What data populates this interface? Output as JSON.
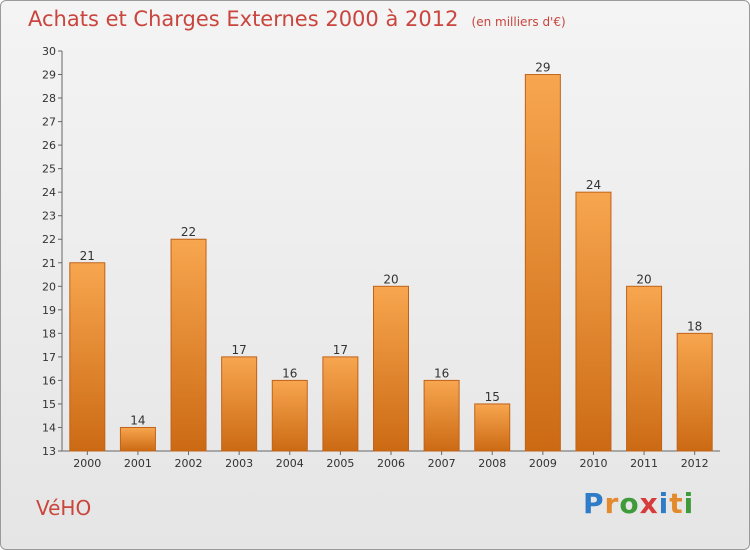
{
  "chart_data": {
    "type": "bar",
    "title": "Achats et Charges Externes 2000 à 2012",
    "subtitle": "(en milliers d'€)",
    "categories": [
      "2000",
      "2001",
      "2002",
      "2003",
      "2004",
      "2005",
      "2006",
      "2007",
      "2008",
      "2009",
      "2010",
      "2011",
      "2012"
    ],
    "values": [
      21,
      14,
      22,
      17,
      16,
      17,
      20,
      16,
      15,
      29,
      24,
      20,
      18
    ],
    "ylim": [
      13,
      30
    ],
    "yticks": [
      13,
      14,
      15,
      16,
      17,
      18,
      19,
      20,
      21,
      22,
      23,
      24,
      25,
      26,
      27,
      28,
      29,
      30
    ],
    "xlabel": "",
    "ylabel": "",
    "grid": false,
    "legend": "none",
    "colors": {
      "bar_top": "#f7a64f",
      "bar_bottom": "#cc6a14",
      "bar_edge": "#c0621a",
      "title": "#c9453e"
    }
  },
  "footer": {
    "place": "VéHO",
    "brand": "Proxiti",
    "brand_colors": [
      "#2e7bc8",
      "#e38a2c",
      "#3f9a3a",
      "#d63c3c",
      "#2e7bc8",
      "#e38a2c",
      "#3f9a3a"
    ]
  }
}
